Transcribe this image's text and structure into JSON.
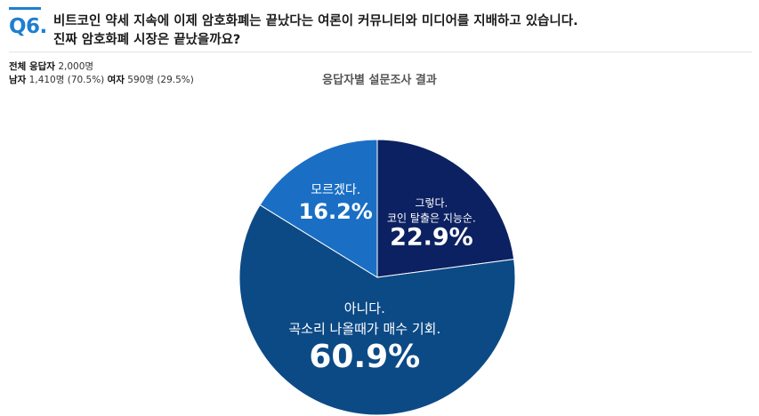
{
  "question": {
    "number": "Q6.",
    "line1": "비트코인 약세 지속에 이제 암호화폐는 끝났다는 여론이 커뮤니티와 미디어를 지배하고 있습니다.",
    "line2": "진짜 암호화폐 시장은 끝났을까요?"
  },
  "respondents": {
    "total_label": "전체 응답자",
    "total_value": "2,000명",
    "male_label": "남자",
    "male_value": "1,410명 (70.5%)",
    "female_label": "여자",
    "female_value": "590명 (29.5%)"
  },
  "chart_data": {
    "type": "pie",
    "title": "응답자별 설문조사 결과",
    "slices": [
      {
        "lines": [
          "그렇다.",
          "코인 탈출은 지능순."
        ],
        "value": 22.9,
        "label": "22.9%",
        "color": "#0c2161"
      },
      {
        "lines": [
          "아니다.",
          "곡소리 나올때가 매수 기회."
        ],
        "value": 60.9,
        "label": "60.9%",
        "color": "#0c4a86"
      },
      {
        "lines": [
          "모르겠다."
        ],
        "value": 16.2,
        "label": "16.2%",
        "color": "#1a6fc4"
      }
    ]
  }
}
